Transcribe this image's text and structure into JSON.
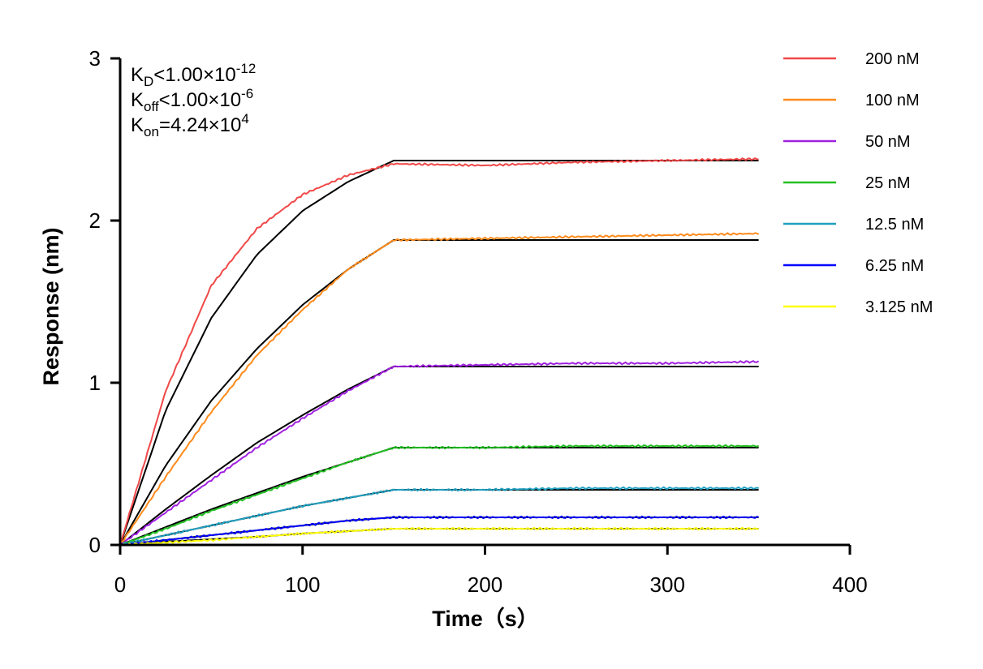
{
  "chart_data": {
    "type": "line",
    "xlabel": "Time（s）",
    "ylabel": "Response (nm)",
    "xlim": [
      0,
      400
    ],
    "ylim": [
      0,
      3
    ],
    "xticks": [
      "0",
      "100",
      "200",
      "300",
      "400"
    ],
    "yticks": [
      "0",
      "1",
      "2",
      "3"
    ],
    "grid": false,
    "legend_position": "top-right",
    "annotations": [
      {
        "main": "K",
        "sub": "D",
        "rel": "<1.00×10",
        "sup": "-12"
      },
      {
        "main": "K",
        "sub": "off",
        "rel": "<1.00×10",
        "sup": "-6"
      },
      {
        "main": "K",
        "sub": "on",
        "rel": "=4.24×10",
        "sup": "4"
      }
    ],
    "x": [
      0,
      25,
      50,
      75,
      100,
      125,
      150,
      200,
      250,
      300,
      350
    ],
    "series": [
      {
        "name": "200 nM",
        "color": "#f04848",
        "values": [
          0,
          0.95,
          1.6,
          1.95,
          2.16,
          2.28,
          2.35,
          2.34,
          2.36,
          2.37,
          2.38
        ],
        "fit": [
          0,
          0.83,
          1.4,
          1.79,
          2.06,
          2.24,
          2.37,
          2.37,
          2.37,
          2.37,
          2.37
        ]
      },
      {
        "name": "100 nM",
        "color": "#ff8a1a",
        "values": [
          0,
          0.42,
          0.82,
          1.17,
          1.45,
          1.7,
          1.88,
          1.89,
          1.9,
          1.91,
          1.92
        ],
        "fit": [
          0,
          0.49,
          0.89,
          1.21,
          1.48,
          1.7,
          1.88,
          1.88,
          1.88,
          1.88,
          1.88
        ]
      },
      {
        "name": "50 nM",
        "color": "#a020e0",
        "values": [
          0,
          0.2,
          0.4,
          0.6,
          0.78,
          0.95,
          1.1,
          1.11,
          1.12,
          1.12,
          1.13
        ],
        "fit": [
          0,
          0.22,
          0.43,
          0.63,
          0.8,
          0.96,
          1.1,
          1.1,
          1.1,
          1.1,
          1.1
        ]
      },
      {
        "name": "25 nM",
        "color": "#22c022",
        "values": [
          0,
          0.1,
          0.21,
          0.31,
          0.41,
          0.51,
          0.6,
          0.6,
          0.61,
          0.61,
          0.61
        ],
        "fit": [
          0,
          0.11,
          0.22,
          0.32,
          0.42,
          0.51,
          0.6,
          0.6,
          0.6,
          0.6,
          0.6
        ]
      },
      {
        "name": "12.5 nM",
        "color": "#20a0c0",
        "values": [
          0,
          0.06,
          0.12,
          0.18,
          0.24,
          0.29,
          0.34,
          0.34,
          0.35,
          0.35,
          0.35
        ],
        "fit": [
          0,
          0.06,
          0.12,
          0.18,
          0.24,
          0.29,
          0.34,
          0.34,
          0.34,
          0.34,
          0.34
        ]
      },
      {
        "name": "6.25 nM",
        "color": "#0000ff",
        "values": [
          0,
          0.03,
          0.06,
          0.09,
          0.12,
          0.15,
          0.17,
          0.17,
          0.17,
          0.17,
          0.17
        ],
        "fit": [
          0,
          0.03,
          0.06,
          0.09,
          0.12,
          0.15,
          0.17,
          0.17,
          0.17,
          0.17,
          0.17
        ]
      },
      {
        "name": "3.125 nM",
        "color": "#ffff00",
        "values": [
          0,
          0.015,
          0.03,
          0.05,
          0.07,
          0.085,
          0.1,
          0.1,
          0.1,
          0.1,
          0.1
        ],
        "fit": [
          0,
          0.02,
          0.035,
          0.05,
          0.07,
          0.085,
          0.1,
          0.1,
          0.1,
          0.1,
          0.1
        ]
      }
    ]
  }
}
